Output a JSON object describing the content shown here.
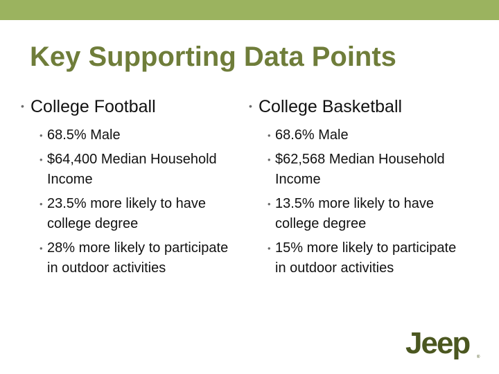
{
  "slide": {
    "title": "Key Supporting Data Points",
    "bullet_glyph": "•",
    "columns": [
      {
        "heading": "College Football",
        "items": [
          "68.5% Male",
          "$64,400 Median Household Income",
          "23.5% more likely to have college degree",
          "28% more likely to participate in outdoor activities"
        ]
      },
      {
        "heading": "College Basketball",
        "items": [
          "68.6% Male",
          "$62,568 Median Household Income",
          "13.5% more likely to have college degree",
          "15% more likely to participate in outdoor activities"
        ]
      }
    ],
    "logo_text": "Jeep",
    "logo_mark": "®"
  },
  "colors": {
    "top_bar": "#9bb35f",
    "title": "#6f7d3a",
    "body_text": "#111111",
    "logo": "#4b5720"
  }
}
